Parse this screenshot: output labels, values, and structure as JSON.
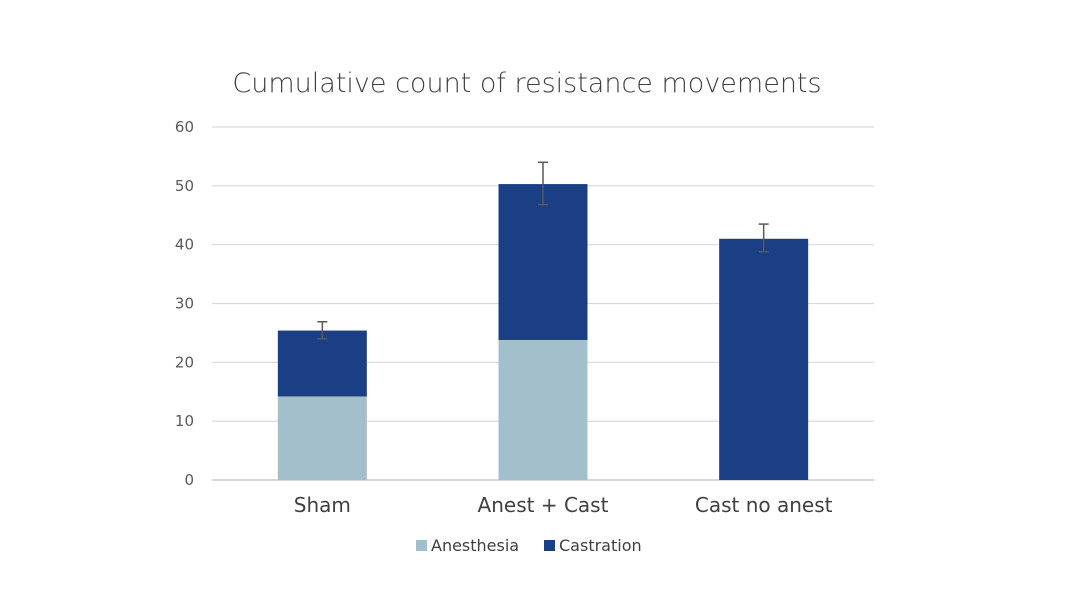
{
  "chart_data": {
    "type": "bar",
    "stacked": true,
    "title": "Cumulative count of resistance movements",
    "xlabel": "",
    "ylabel": "",
    "categories": [
      "Sham",
      "Anest + Cast",
      "Cast no anest"
    ],
    "series": [
      {
        "name": "Anesthesia",
        "color": "#a3bfcc",
        "values": [
          14.2,
          23.8,
          0
        ]
      },
      {
        "name": "Castration",
        "color": "#1b3f84",
        "values": [
          11.2,
          26.5,
          41.0
        ]
      }
    ],
    "error_bars": [
      {
        "low": 24.0,
        "high": 26.9
      },
      {
        "low": 46.8,
        "high": 54.0
      },
      {
        "low": 38.8,
        "high": 43.5
      }
    ],
    "ylim": [
      0,
      60
    ],
    "yticks": [
      0,
      10,
      20,
      30,
      40,
      50,
      60
    ],
    "grid": true,
    "legend_position": "bottom"
  }
}
